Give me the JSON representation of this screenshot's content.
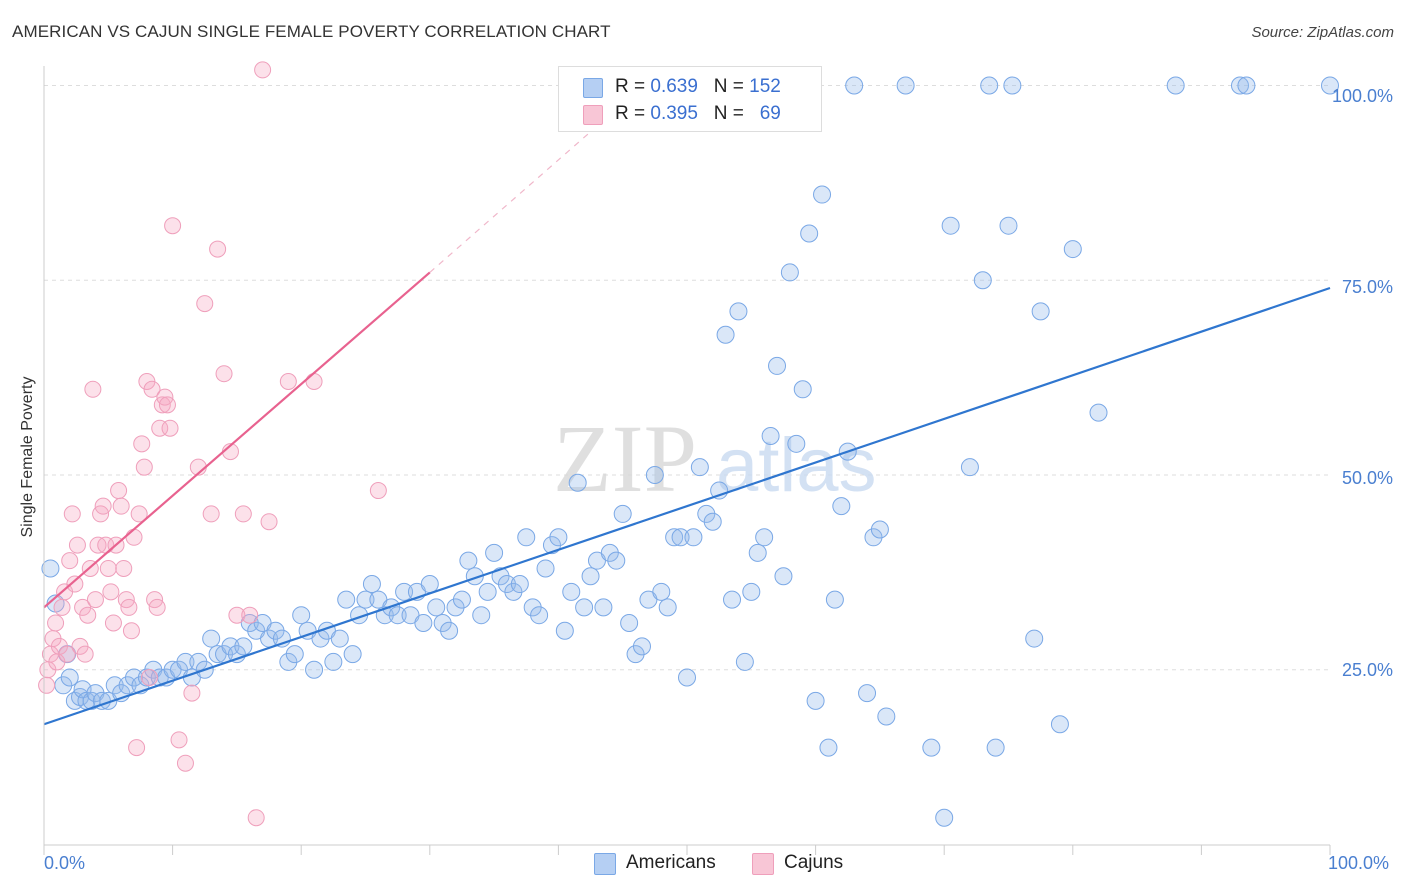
{
  "title": "AMERICAN VS CAJUN SINGLE FEMALE POVERTY CORRELATION CHART",
  "source": "Source: ZipAtlas.com",
  "watermark": {
    "zip": "ZIP",
    "atlas": "atlas"
  },
  "colors": {
    "american_fill": "rgba(150,185,235,0.35)",
    "american_stroke": "#7aa8e6",
    "american_line": "#2f76cf",
    "cajun_fill": "rgba(245,170,195,0.35)",
    "cajun_stroke": "#ef9fbb",
    "cajun_line": "#e8628f",
    "grid": "#dddddd",
    "tick_text": "#4a7fd0"
  },
  "legend": {
    "rows": [
      {
        "r_label": "R =",
        "r_value": "0.639",
        "n_label": "N =",
        "n_value": "152"
      },
      {
        "r_label": "R =",
        "r_value": "0.395",
        "n_label": "N =",
        "n_value": "69"
      }
    ]
  },
  "bottom_legend": {
    "americans": "Americans",
    "cajuns": "Cajuns"
  },
  "chart_data": {
    "type": "scatter",
    "title": "AMERICAN VS CAJUN SINGLE FEMALE POVERTY CORRELATION CHART",
    "xlabel": "",
    "ylabel": "Single Female Poverty",
    "xlim": [
      0,
      100
    ],
    "ylim": [
      2.5,
      102.5
    ],
    "x_tick_labels": [
      "0.0%",
      "100.0%"
    ],
    "y_ticks": [
      25,
      50,
      75,
      100
    ],
    "y_tick_labels": [
      "25.0%",
      "50.0%",
      "75.0%",
      "100.0%"
    ],
    "series": [
      {
        "name": "Americans",
        "r": 0.639,
        "n": 152,
        "trend": {
          "x": [
            0,
            100
          ],
          "y": [
            18,
            74
          ]
        },
        "points": [
          [
            0.5,
            38
          ],
          [
            0.9,
            33.5
          ],
          [
            1.5,
            23
          ],
          [
            1.8,
            27
          ],
          [
            2,
            24
          ],
          [
            2.4,
            21
          ],
          [
            2.8,
            21.5
          ],
          [
            3,
            22.5
          ],
          [
            3.3,
            21
          ],
          [
            3.7,
            21
          ],
          [
            4,
            22
          ],
          [
            4.5,
            21
          ],
          [
            5,
            21
          ],
          [
            5.5,
            23
          ],
          [
            6,
            22
          ],
          [
            6.5,
            23
          ],
          [
            7,
            24
          ],
          [
            7.5,
            23
          ],
          [
            8,
            24
          ],
          [
            8.5,
            25
          ],
          [
            9,
            24
          ],
          [
            9.5,
            24
          ],
          [
            10,
            25
          ],
          [
            10.5,
            25
          ],
          [
            11,
            26
          ],
          [
            11.5,
            24
          ],
          [
            12,
            26
          ],
          [
            12.5,
            25
          ],
          [
            13,
            29
          ],
          [
            13.5,
            27
          ],
          [
            14,
            27
          ],
          [
            14.5,
            28
          ],
          [
            15,
            27
          ],
          [
            15.5,
            28
          ],
          [
            16,
            31
          ],
          [
            16.5,
            30
          ],
          [
            17,
            31
          ],
          [
            17.5,
            29
          ],
          [
            18,
            30
          ],
          [
            18.5,
            29
          ],
          [
            19,
            26
          ],
          [
            19.5,
            27
          ],
          [
            20,
            32
          ],
          [
            20.5,
            30
          ],
          [
            21,
            25
          ],
          [
            21.5,
            29
          ],
          [
            22,
            30
          ],
          [
            22.5,
            26
          ],
          [
            23,
            29
          ],
          [
            23.5,
            34
          ],
          [
            24,
            27
          ],
          [
            24.5,
            32
          ],
          [
            25,
            34
          ],
          [
            25.5,
            36
          ],
          [
            26,
            34
          ],
          [
            26.5,
            32
          ],
          [
            27,
            33
          ],
          [
            27.5,
            32
          ],
          [
            28,
            35
          ],
          [
            28.5,
            32
          ],
          [
            29,
            35
          ],
          [
            29.5,
            31
          ],
          [
            30,
            36
          ],
          [
            30.5,
            33
          ],
          [
            31,
            31
          ],
          [
            31.5,
            30
          ],
          [
            32,
            33
          ],
          [
            32.5,
            34
          ],
          [
            33,
            39
          ],
          [
            33.5,
            37
          ],
          [
            34,
            32
          ],
          [
            34.5,
            35
          ],
          [
            35,
            40
          ],
          [
            35.5,
            37
          ],
          [
            36,
            36
          ],
          [
            36.5,
            35
          ],
          [
            37,
            36
          ],
          [
            37.5,
            42
          ],
          [
            38,
            33
          ],
          [
            38.5,
            32
          ],
          [
            39,
            38
          ],
          [
            39.5,
            41
          ],
          [
            40,
            42
          ],
          [
            40.5,
            30
          ],
          [
            41,
            35
          ],
          [
            41.5,
            49
          ],
          [
            42,
            33
          ],
          [
            42.5,
            37
          ],
          [
            43,
            39
          ],
          [
            43.5,
            33
          ],
          [
            44,
            40
          ],
          [
            44.5,
            39
          ],
          [
            45,
            45
          ],
          [
            45.5,
            31
          ],
          [
            46,
            27
          ],
          [
            46.5,
            28
          ],
          [
            47,
            34
          ],
          [
            47.5,
            50
          ],
          [
            48,
            35
          ],
          [
            48.5,
            33
          ],
          [
            49,
            42
          ],
          [
            49.5,
            42
          ],
          [
            50,
            24
          ],
          [
            50.5,
            42
          ],
          [
            51,
            51
          ],
          [
            51.5,
            45
          ],
          [
            52,
            44
          ],
          [
            52.5,
            48
          ],
          [
            53,
            68
          ],
          [
            53.5,
            34
          ],
          [
            54,
            71
          ],
          [
            54.5,
            26
          ],
          [
            55,
            35
          ],
          [
            55.5,
            40
          ],
          [
            56,
            42
          ],
          [
            56.5,
            55
          ],
          [
            57,
            64
          ],
          [
            57.5,
            37
          ],
          [
            58,
            76
          ],
          [
            58.5,
            54
          ],
          [
            59,
            61
          ],
          [
            59.5,
            81
          ],
          [
            60,
            21
          ],
          [
            60.5,
            86
          ],
          [
            61,
            15
          ],
          [
            61.5,
            34
          ],
          [
            62,
            46
          ],
          [
            62.5,
            53
          ],
          [
            63,
            100
          ],
          [
            64,
            22
          ],
          [
            64.5,
            42
          ],
          [
            65,
            43
          ],
          [
            65.5,
            19
          ],
          [
            67,
            100
          ],
          [
            69,
            15
          ],
          [
            70,
            6
          ],
          [
            70.5,
            82
          ],
          [
            72,
            51
          ],
          [
            73,
            75
          ],
          [
            73.5,
            100
          ],
          [
            74,
            15
          ],
          [
            75,
            82
          ],
          [
            75.3,
            100
          ],
          [
            77,
            29
          ],
          [
            77.5,
            71
          ],
          [
            79,
            18
          ],
          [
            80,
            79
          ],
          [
            82,
            58
          ],
          [
            88,
            100
          ],
          [
            93,
            100
          ],
          [
            93.5,
            100
          ],
          [
            100,
            100
          ]
        ]
      },
      {
        "name": "Cajuns",
        "r": 0.395,
        "n": 69,
        "trend": {
          "x": [
            0,
            30
          ],
          "y": [
            33,
            76
          ]
        },
        "trend_extension": {
          "x": [
            30,
            48
          ],
          "y": [
            76,
            102
          ]
        },
        "points": [
          [
            0.2,
            23
          ],
          [
            0.3,
            25
          ],
          [
            0.5,
            27
          ],
          [
            0.7,
            29
          ],
          [
            0.9,
            31
          ],
          [
            1,
            26
          ],
          [
            1.2,
            28
          ],
          [
            1.4,
            33
          ],
          [
            1.6,
            35
          ],
          [
            1.8,
            27
          ],
          [
            2,
            39
          ],
          [
            2.2,
            45
          ],
          [
            2.4,
            36
          ],
          [
            2.6,
            41
          ],
          [
            2.8,
            28
          ],
          [
            3,
            33
          ],
          [
            3.2,
            27
          ],
          [
            3.4,
            32
          ],
          [
            3.6,
            38
          ],
          [
            3.8,
            61
          ],
          [
            4,
            34
          ],
          [
            4.2,
            41
          ],
          [
            4.4,
            45
          ],
          [
            4.6,
            46
          ],
          [
            4.8,
            41
          ],
          [
            5,
            38
          ],
          [
            5.2,
            35
          ],
          [
            5.4,
            31
          ],
          [
            5.6,
            41
          ],
          [
            5.8,
            48
          ],
          [
            6,
            46
          ],
          [
            6.2,
            38
          ],
          [
            6.4,
            34
          ],
          [
            6.6,
            33
          ],
          [
            6.8,
            30
          ],
          [
            7,
            42
          ],
          [
            7.2,
            15
          ],
          [
            7.4,
            45
          ],
          [
            7.6,
            54
          ],
          [
            7.8,
            51
          ],
          [
            8,
            62
          ],
          [
            8.2,
            24
          ],
          [
            8.4,
            61
          ],
          [
            8.6,
            34
          ],
          [
            8.8,
            33
          ],
          [
            9,
            56
          ],
          [
            9.2,
            59
          ],
          [
            9.4,
            60
          ],
          [
            9.6,
            59
          ],
          [
            9.8,
            56
          ],
          [
            10,
            82
          ],
          [
            10.5,
            16
          ],
          [
            11,
            13
          ],
          [
            11.5,
            22
          ],
          [
            12,
            51
          ],
          [
            12.5,
            72
          ],
          [
            13,
            45
          ],
          [
            13.5,
            79
          ],
          [
            14,
            63
          ],
          [
            14.5,
            53
          ],
          [
            15,
            32
          ],
          [
            15.5,
            45
          ],
          [
            16,
            32
          ],
          [
            16.5,
            6
          ],
          [
            17,
            102
          ],
          [
            17.5,
            44
          ],
          [
            19,
            62
          ],
          [
            21,
            62
          ],
          [
            26,
            48
          ]
        ]
      }
    ]
  }
}
